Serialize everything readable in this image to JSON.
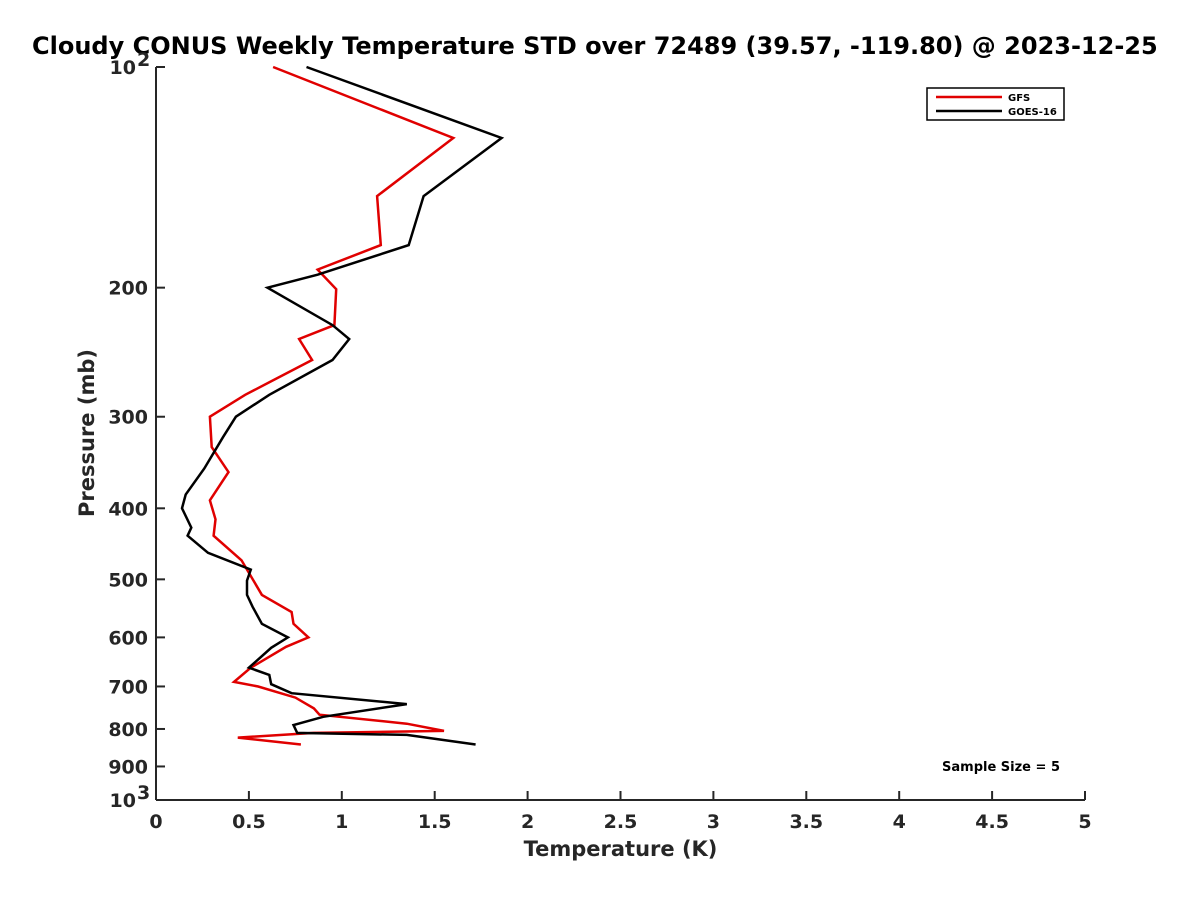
{
  "chart_data": {
    "type": "line",
    "title": "Cloudy CONUS Weekly Temperature STD over 72489 (39.57, -119.80) @ 2023-12-25",
    "xlabel": "Temperature (K)",
    "ylabel": "Pressure (mb)",
    "xlim": [
      0,
      5
    ],
    "ylim": [
      100,
      1000
    ],
    "y_scale": "log",
    "y_reversed": true,
    "grid": false,
    "legend_position": "top-right",
    "x_ticks": [
      "0",
      "0.5",
      "1",
      "1.5",
      "2",
      "2.5",
      "3",
      "3.5",
      "4",
      "4.5",
      "5"
    ],
    "y_ticks": [
      {
        "value": 100,
        "base": "10",
        "exp": "2"
      },
      {
        "value": 200,
        "base": "200",
        "exp": ""
      },
      {
        "value": 300,
        "base": "300",
        "exp": ""
      },
      {
        "value": 400,
        "base": "400",
        "exp": ""
      },
      {
        "value": 500,
        "base": "500",
        "exp": ""
      },
      {
        "value": 600,
        "base": "600",
        "exp": ""
      },
      {
        "value": 700,
        "base": "700",
        "exp": ""
      },
      {
        "value": 800,
        "base": "800",
        "exp": ""
      },
      {
        "value": 900,
        "base": "900",
        "exp": ""
      },
      {
        "value": 1000,
        "base": "10",
        "exp": "3"
      }
    ],
    "series": [
      {
        "name": "GFS",
        "color": "#e00000",
        "points": [
          [
            0.63,
            100
          ],
          [
            1.6,
            125
          ],
          [
            1.19,
            150
          ],
          [
            1.21,
            175
          ],
          [
            0.87,
            189
          ],
          [
            0.97,
            201
          ],
          [
            0.96,
            225
          ],
          [
            0.77,
            235
          ],
          [
            0.84,
            251
          ],
          [
            0.48,
            280
          ],
          [
            0.29,
            300
          ],
          [
            0.3,
            330
          ],
          [
            0.39,
            357
          ],
          [
            0.29,
            390
          ],
          [
            0.32,
            414
          ],
          [
            0.31,
            436
          ],
          [
            0.46,
            471
          ],
          [
            0.57,
            525
          ],
          [
            0.73,
            554
          ],
          [
            0.74,
            575
          ],
          [
            0.82,
            600
          ],
          [
            0.7,
            618
          ],
          [
            0.51,
            660
          ],
          [
            0.42,
            690
          ],
          [
            0.55,
            700
          ],
          [
            0.75,
            725
          ],
          [
            0.85,
            750
          ],
          [
            0.88,
            765
          ],
          [
            1.35,
            787
          ],
          [
            1.55,
            805
          ],
          [
            0.85,
            810
          ],
          [
            0.44,
            822
          ],
          [
            0.78,
            840
          ]
        ]
      },
      {
        "name": "GOES-16",
        "color": "#000000",
        "points": [
          [
            0.81,
            100
          ],
          [
            1.86,
            125
          ],
          [
            1.44,
            150
          ],
          [
            1.36,
            175
          ],
          [
            0.87,
            192
          ],
          [
            0.6,
            200
          ],
          [
            0.95,
            225
          ],
          [
            1.04,
            235
          ],
          [
            0.95,
            251
          ],
          [
            0.61,
            280
          ],
          [
            0.43,
            300
          ],
          [
            0.36,
            320
          ],
          [
            0.26,
            353
          ],
          [
            0.16,
            383
          ],
          [
            0.14,
            400
          ],
          [
            0.19,
            425
          ],
          [
            0.17,
            436
          ],
          [
            0.28,
            460
          ],
          [
            0.51,
            485
          ],
          [
            0.49,
            502
          ],
          [
            0.49,
            525
          ],
          [
            0.52,
            545
          ],
          [
            0.57,
            575
          ],
          [
            0.71,
            600
          ],
          [
            0.62,
            620
          ],
          [
            0.5,
            660
          ],
          [
            0.61,
            675
          ],
          [
            0.62,
            695
          ],
          [
            0.73,
            715
          ],
          [
            1.35,
            740
          ],
          [
            0.9,
            770
          ],
          [
            0.74,
            790
          ],
          [
            0.76,
            810
          ],
          [
            1.35,
            815
          ],
          [
            1.72,
            840
          ]
        ]
      }
    ],
    "annotation": "Sample Size = 5"
  }
}
